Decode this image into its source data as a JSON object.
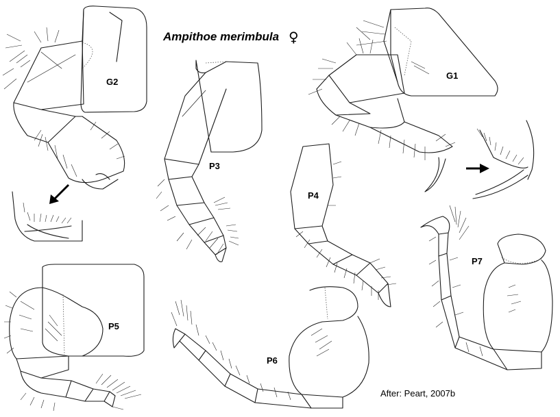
{
  "title": "Ampithoe merimbula",
  "sex_symbol": "♀",
  "credit": "After: Peart, 2007b",
  "labels": {
    "g1": "G1",
    "g2": "G2",
    "p3": "P3",
    "p4": "P4",
    "p5": "P5",
    "p6": "P6",
    "p7": "P7"
  }
}
